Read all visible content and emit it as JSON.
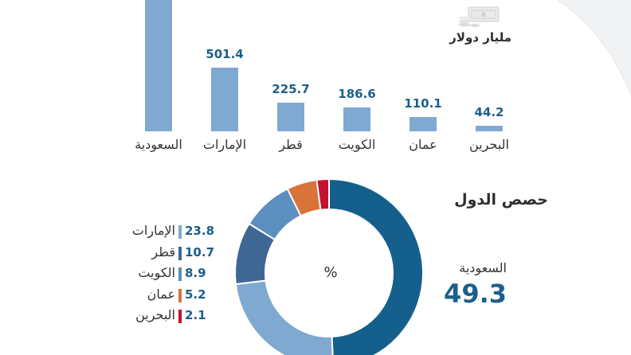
{
  "unit_label": "مليار دولار",
  "section_title": "حصص الدول",
  "percent_sign": "%",
  "featured": {
    "name": "السعودية",
    "value": "49.3"
  },
  "chart_data": [
    {
      "type": "bar",
      "categories": [
        "السعودية",
        "الإمارات",
        "قطر",
        "الكويت",
        "عمان",
        "البحرين"
      ],
      "values": [
        null,
        501.4,
        225.7,
        186.6,
        110.1,
        44.2
      ],
      "value_labels": [
        "",
        "501.4",
        "225.7",
        "186.6",
        "110.1",
        "44.2"
      ],
      "ylabel": "مليار دولار"
    },
    {
      "type": "pie",
      "title": "حصص الدول",
      "categories": [
        "السعودية",
        "الإمارات",
        "قطر",
        "الكويت",
        "عمان",
        "البحرين"
      ],
      "values": [
        49.3,
        23.8,
        10.7,
        8.9,
        5.2,
        2.1
      ],
      "value_labels": [
        "49.3",
        "23.8",
        "10.7",
        "8.9",
        "5.2",
        "2.1"
      ],
      "colors": [
        "#155f8d",
        "#80a9d1",
        "#3f6794",
        "#5b8fbf",
        "#d9733a",
        "#c4112f"
      ]
    }
  ]
}
